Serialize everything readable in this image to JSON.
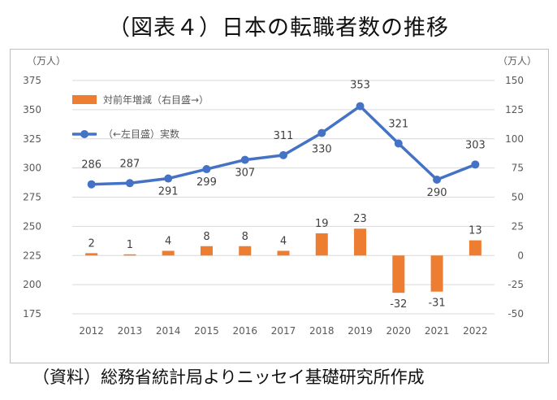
{
  "page_title": "（図表４）日本の転職者数の推移",
  "source_note": "（資料）総務省統計局よりニッセイ基礎研究所作成",
  "colors": {
    "line": "#4472C4",
    "bar": "#ED7D31",
    "grid": "#d9d9d9",
    "text": "#595959"
  },
  "chart_data": {
    "type": "bar+line",
    "categories": [
      "2012",
      "2013",
      "2014",
      "2015",
      "2016",
      "2017",
      "2018",
      "2019",
      "2020",
      "2021",
      "2022"
    ],
    "left_axis": {
      "unit": "（万人）",
      "range": [
        175,
        375
      ],
      "ticks": [
        375,
        350,
        325,
        300,
        275,
        250,
        225,
        200,
        175
      ]
    },
    "right_axis": {
      "unit": "（万人）",
      "range": [
        -50,
        150
      ],
      "ticks": [
        150,
        125,
        100,
        75,
        50,
        25,
        0,
        -25,
        -50
      ]
    },
    "series": [
      {
        "name": "（←左目盛）実数",
        "type": "line",
        "axis": "left",
        "values": [
          286,
          287,
          291,
          299,
          307,
          311,
          330,
          353,
          321,
          290,
          303
        ]
      },
      {
        "name": "対前年増減（右目盛→）",
        "type": "bar",
        "axis": "right",
        "values": [
          2,
          1,
          4,
          8,
          8,
          4,
          19,
          23,
          -32,
          -31,
          13
        ]
      }
    ],
    "grid": true
  }
}
